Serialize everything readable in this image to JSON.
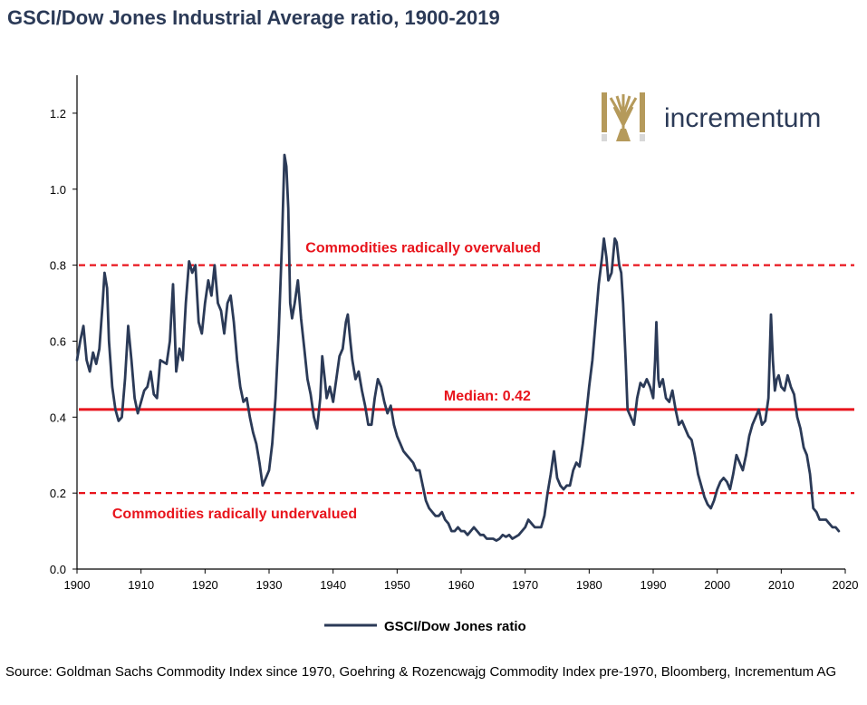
{
  "title": "GSCI/Dow Jones Industrial Average ratio, 1900-2019",
  "source": "Source: Goldman Sachs Commodity Index since 1970, Goehring & Rozencwajg Commodity Index pre-1970, Bloomberg, Incrementum AG",
  "logo": {
    "text": "incrementum",
    "icon": "tree-logo-icon",
    "color_text": "#2b3a57",
    "color_icon": "#b59a5b"
  },
  "colors": {
    "series": "#2b3a57",
    "reference": "#e8141c",
    "axis": "#000000",
    "title": "#2b3a57"
  },
  "chart_data": {
    "type": "line",
    "title": "GSCI/Dow Jones Industrial Average ratio, 1900-2019",
    "xlim": [
      1900,
      2020
    ],
    "ylim": [
      0,
      1.3
    ],
    "x_ticks": [
      "1900",
      "1910",
      "1920",
      "1930",
      "1940",
      "1950",
      "1960",
      "1970",
      "1980",
      "1990",
      "2000",
      "2010",
      "2020"
    ],
    "y_ticks": [
      "0.0",
      "0.2",
      "0.4",
      "0.6",
      "0.8",
      "1.0",
      "1.2"
    ],
    "grid": false,
    "legend": {
      "position": "bottom",
      "entries": [
        "GSCI/Dow Jones ratio"
      ]
    },
    "reference_lines": [
      {
        "y": 0.8,
        "style": "dashed",
        "label": "Commodities radically overvalued"
      },
      {
        "y": 0.42,
        "style": "solid",
        "label": "Median: 0.42"
      },
      {
        "y": 0.2,
        "style": "dashed",
        "label": "Commodities radically undervalued"
      }
    ],
    "series": [
      {
        "name": "GSCI/Dow Jones ratio",
        "points": [
          [
            1900,
            0.55
          ],
          [
            1900.5,
            0.6
          ],
          [
            1901,
            0.64
          ],
          [
            1901.5,
            0.55
          ],
          [
            1902,
            0.52
          ],
          [
            1902.5,
            0.57
          ],
          [
            1903,
            0.54
          ],
          [
            1903.5,
            0.58
          ],
          [
            1904,
            0.7
          ],
          [
            1904.3,
            0.78
          ],
          [
            1904.7,
            0.74
          ],
          [
            1905,
            0.6
          ],
          [
            1905.5,
            0.48
          ],
          [
            1906,
            0.42
          ],
          [
            1906.5,
            0.39
          ],
          [
            1907,
            0.4
          ],
          [
            1907.5,
            0.5
          ],
          [
            1908,
            0.64
          ],
          [
            1908.5,
            0.55
          ],
          [
            1909,
            0.45
          ],
          [
            1909.5,
            0.41
          ],
          [
            1910,
            0.44
          ],
          [
            1910.5,
            0.47
          ],
          [
            1911,
            0.48
          ],
          [
            1911.5,
            0.52
          ],
          [
            1912,
            0.46
          ],
          [
            1912.5,
            0.45
          ],
          [
            1913,
            0.55
          ],
          [
            1914,
            0.54
          ],
          [
            1914.5,
            0.6
          ],
          [
            1915,
            0.75
          ],
          [
            1915.5,
            0.52
          ],
          [
            1916,
            0.58
          ],
          [
            1916.5,
            0.55
          ],
          [
            1917,
            0.7
          ],
          [
            1917.5,
            0.81
          ],
          [
            1918,
            0.78
          ],
          [
            1918.5,
            0.8
          ],
          [
            1919,
            0.65
          ],
          [
            1919.5,
            0.62
          ],
          [
            1920,
            0.7
          ],
          [
            1920.5,
            0.76
          ],
          [
            1921,
            0.72
          ],
          [
            1921.5,
            0.8
          ],
          [
            1922,
            0.7
          ],
          [
            1922.5,
            0.68
          ],
          [
            1923,
            0.62
          ],
          [
            1923.5,
            0.7
          ],
          [
            1924,
            0.72
          ],
          [
            1924.5,
            0.65
          ],
          [
            1925,
            0.55
          ],
          [
            1925.5,
            0.48
          ],
          [
            1926,
            0.44
          ],
          [
            1926.5,
            0.45
          ],
          [
            1927,
            0.4
          ],
          [
            1927.5,
            0.36
          ],
          [
            1928,
            0.33
          ],
          [
            1928.5,
            0.28
          ],
          [
            1929,
            0.22
          ],
          [
            1929.5,
            0.24
          ],
          [
            1930,
            0.26
          ],
          [
            1930.5,
            0.33
          ],
          [
            1931,
            0.45
          ],
          [
            1931.5,
            0.62
          ],
          [
            1932,
            0.85
          ],
          [
            1932.4,
            1.09
          ],
          [
            1932.7,
            1.06
          ],
          [
            1933,
            0.95
          ],
          [
            1933.3,
            0.7
          ],
          [
            1933.6,
            0.66
          ],
          [
            1934,
            0.7
          ],
          [
            1934.5,
            0.76
          ],
          [
            1935,
            0.66
          ],
          [
            1935.5,
            0.58
          ],
          [
            1936,
            0.5
          ],
          [
            1936.5,
            0.46
          ],
          [
            1937,
            0.4
          ],
          [
            1937.5,
            0.37
          ],
          [
            1938,
            0.45
          ],
          [
            1938.3,
            0.56
          ],
          [
            1938.7,
            0.5
          ],
          [
            1939,
            0.45
          ],
          [
            1939.5,
            0.48
          ],
          [
            1940,
            0.44
          ],
          [
            1940.5,
            0.5
          ],
          [
            1941,
            0.56
          ],
          [
            1941.5,
            0.58
          ],
          [
            1942,
            0.65
          ],
          [
            1942.3,
            0.67
          ],
          [
            1942.7,
            0.6
          ],
          [
            1943,
            0.55
          ],
          [
            1943.5,
            0.5
          ],
          [
            1944,
            0.52
          ],
          [
            1944.5,
            0.47
          ],
          [
            1945,
            0.43
          ],
          [
            1945.5,
            0.38
          ],
          [
            1946,
            0.38
          ],
          [
            1946.5,
            0.45
          ],
          [
            1947,
            0.5
          ],
          [
            1947.5,
            0.48
          ],
          [
            1948,
            0.44
          ],
          [
            1948.5,
            0.41
          ],
          [
            1949,
            0.43
          ],
          [
            1949.5,
            0.38
          ],
          [
            1950,
            0.35
          ],
          [
            1950.5,
            0.33
          ],
          [
            1951,
            0.31
          ],
          [
            1951.5,
            0.3
          ],
          [
            1952,
            0.29
          ],
          [
            1952.5,
            0.28
          ],
          [
            1953,
            0.26
          ],
          [
            1953.5,
            0.26
          ],
          [
            1954,
            0.22
          ],
          [
            1954.5,
            0.18
          ],
          [
            1955,
            0.16
          ],
          [
            1955.5,
            0.15
          ],
          [
            1956,
            0.14
          ],
          [
            1956.5,
            0.14
          ],
          [
            1957,
            0.15
          ],
          [
            1957.5,
            0.13
          ],
          [
            1958,
            0.12
          ],
          [
            1958.5,
            0.1
          ],
          [
            1959,
            0.1
          ],
          [
            1959.5,
            0.11
          ],
          [
            1960,
            0.1
          ],
          [
            1960.5,
            0.1
          ],
          [
            1961,
            0.09
          ],
          [
            1961.5,
            0.1
          ],
          [
            1962,
            0.11
          ],
          [
            1962.5,
            0.1
          ],
          [
            1963,
            0.09
          ],
          [
            1963.5,
            0.09
          ],
          [
            1964,
            0.08
          ],
          [
            1964.5,
            0.08
          ],
          [
            1965,
            0.08
          ],
          [
            1965.5,
            0.075
          ],
          [
            1966,
            0.08
          ],
          [
            1966.5,
            0.09
          ],
          [
            1967,
            0.085
          ],
          [
            1967.5,
            0.09
          ],
          [
            1968,
            0.08
          ],
          [
            1968.5,
            0.085
          ],
          [
            1969,
            0.09
          ],
          [
            1969.5,
            0.1
          ],
          [
            1970,
            0.11
          ],
          [
            1970.5,
            0.13
          ],
          [
            1971,
            0.12
          ],
          [
            1971.5,
            0.11
          ],
          [
            1972,
            0.11
          ],
          [
            1972.5,
            0.11
          ],
          [
            1973,
            0.14
          ],
          [
            1973.5,
            0.2
          ],
          [
            1974,
            0.25
          ],
          [
            1974.5,
            0.31
          ],
          [
            1975,
            0.24
          ],
          [
            1975.5,
            0.22
          ],
          [
            1976,
            0.21
          ],
          [
            1976.5,
            0.22
          ],
          [
            1977,
            0.22
          ],
          [
            1977.5,
            0.26
          ],
          [
            1978,
            0.28
          ],
          [
            1978.5,
            0.27
          ],
          [
            1979,
            0.33
          ],
          [
            1979.5,
            0.4
          ],
          [
            1980,
            0.48
          ],
          [
            1980.5,
            0.55
          ],
          [
            1981,
            0.65
          ],
          [
            1981.5,
            0.75
          ],
          [
            1982,
            0.82
          ],
          [
            1982.3,
            0.87
          ],
          [
            1982.7,
            0.82
          ],
          [
            1983,
            0.76
          ],
          [
            1983.5,
            0.78
          ],
          [
            1984,
            0.87
          ],
          [
            1984.3,
            0.86
          ],
          [
            1984.7,
            0.8
          ],
          [
            1985,
            0.78
          ],
          [
            1985.3,
            0.7
          ],
          [
            1985.7,
            0.55
          ],
          [
            1986,
            0.42
          ],
          [
            1986.5,
            0.4
          ],
          [
            1987,
            0.38
          ],
          [
            1987.5,
            0.45
          ],
          [
            1988,
            0.49
          ],
          [
            1988.5,
            0.48
          ],
          [
            1989,
            0.5
          ],
          [
            1989.5,
            0.48
          ],
          [
            1990,
            0.45
          ],
          [
            1990.3,
            0.55
          ],
          [
            1990.5,
            0.65
          ],
          [
            1990.8,
            0.5
          ],
          [
            1991,
            0.48
          ],
          [
            1991.5,
            0.5
          ],
          [
            1992,
            0.45
          ],
          [
            1992.5,
            0.44
          ],
          [
            1993,
            0.47
          ],
          [
            1993.5,
            0.42
          ],
          [
            1994,
            0.38
          ],
          [
            1994.5,
            0.39
          ],
          [
            1995,
            0.37
          ],
          [
            1995.5,
            0.35
          ],
          [
            1996,
            0.34
          ],
          [
            1996.5,
            0.3
          ],
          [
            1997,
            0.25
          ],
          [
            1997.5,
            0.22
          ],
          [
            1998,
            0.19
          ],
          [
            1998.5,
            0.17
          ],
          [
            1999,
            0.16
          ],
          [
            1999.5,
            0.18
          ],
          [
            2000,
            0.21
          ],
          [
            2000.5,
            0.23
          ],
          [
            2001,
            0.24
          ],
          [
            2001.5,
            0.23
          ],
          [
            2002,
            0.21
          ],
          [
            2002.5,
            0.25
          ],
          [
            2003,
            0.3
          ],
          [
            2003.5,
            0.28
          ],
          [
            2004,
            0.26
          ],
          [
            2004.5,
            0.3
          ],
          [
            2005,
            0.35
          ],
          [
            2005.5,
            0.38
          ],
          [
            2006,
            0.4
          ],
          [
            2006.5,
            0.42
          ],
          [
            2007,
            0.38
          ],
          [
            2007.5,
            0.39
          ],
          [
            2008,
            0.45
          ],
          [
            2008.4,
            0.67
          ],
          [
            2008.7,
            0.55
          ],
          [
            2009,
            0.47
          ],
          [
            2009.3,
            0.5
          ],
          [
            2009.6,
            0.51
          ],
          [
            2010,
            0.48
          ],
          [
            2010.5,
            0.47
          ],
          [
            2011,
            0.51
          ],
          [
            2011.5,
            0.48
          ],
          [
            2012,
            0.46
          ],
          [
            2012.5,
            0.4
          ],
          [
            2013,
            0.37
          ],
          [
            2013.5,
            0.32
          ],
          [
            2014,
            0.3
          ],
          [
            2014.5,
            0.25
          ],
          [
            2015,
            0.16
          ],
          [
            2015.5,
            0.15
          ],
          [
            2016,
            0.13
          ],
          [
            2016.5,
            0.13
          ],
          [
            2017,
            0.13
          ],
          [
            2017.5,
            0.12
          ],
          [
            2018,
            0.11
          ],
          [
            2018.5,
            0.11
          ],
          [
            2019,
            0.1
          ]
        ]
      }
    ]
  }
}
